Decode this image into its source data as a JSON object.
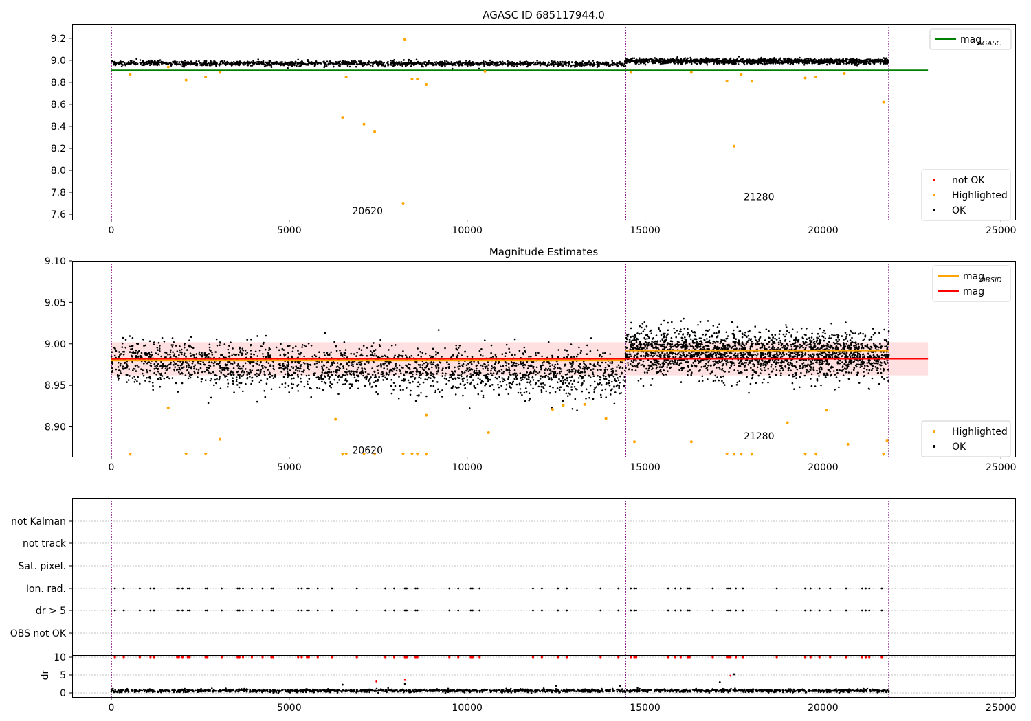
{
  "chart_data": [
    {
      "type": "scatter",
      "title": "AGASC ID 685117944.0",
      "xlim": [
        -1100,
        25400
      ],
      "ylim": [
        7.55,
        9.33
      ],
      "xticks": [
        0,
        5000,
        10000,
        15000,
        20000,
        25000
      ],
      "xtick_labels": [
        "0",
        "5000",
        "10000",
        "15000",
        "20000",
        "25000"
      ],
      "yticks": [
        7.6,
        7.8,
        8.0,
        8.2,
        8.4,
        8.6,
        8.8,
        9.0,
        9.2
      ],
      "ytick_labels": [
        "7.6",
        "7.8",
        "8.0",
        "8.2",
        "8.4",
        "8.6",
        "8.8",
        "9.0",
        "9.2"
      ],
      "obsid_boundaries": [
        0,
        14450,
        21850
      ],
      "obsid_labels": [
        {
          "text": "20620",
          "x": 7200,
          "y": 7.63
        },
        {
          "text": "21280",
          "x": 18200,
          "y": 7.76
        }
      ],
      "series": [
        {
          "name": "mag_AGASC",
          "kind": "hline",
          "y": 8.91,
          "x_range": [
            0,
            22950
          ],
          "color": "#008000"
        },
        {
          "name": "OK",
          "kind": "band",
          "segments": [
            {
              "x": [
                0,
                14450
              ],
              "y_center_start": 8.975,
              "y_center_end": 8.968,
              "half_width": 0.025
            },
            {
              "x": [
                14450,
                21850
              ],
              "y_center_start": 8.993,
              "y_center_end": 8.99,
              "half_width": 0.025
            }
          ],
          "color": "#000000"
        },
        {
          "name": "Highlighted",
          "kind": "points",
          "x": [
            530,
            1600,
            2100,
            2650,
            3050,
            6500,
            6600,
            7100,
            7400,
            8200,
            8250,
            8450,
            8600,
            8850,
            10500,
            14600,
            16300,
            17300,
            17500,
            17700,
            18000,
            19500,
            19800,
            20600,
            21700
          ],
          "y": [
            8.87,
            8.94,
            8.82,
            8.85,
            8.89,
            8.48,
            8.85,
            8.42,
            8.35,
            7.7,
            9.19,
            8.83,
            8.83,
            8.78,
            8.9,
            8.89,
            8.89,
            8.81,
            8.22,
            8.87,
            8.81,
            8.84,
            8.85,
            8.88,
            8.62
          ],
          "color": "#ffa500"
        },
        {
          "name": "not OK",
          "kind": "points",
          "x": [],
          "y": [],
          "color": "#ff0000"
        }
      ],
      "legends": [
        {
          "position": "top-right",
          "entries": [
            {
              "label": "mag",
              "sub": "AGASC",
              "kind": "line",
              "color": "#008000"
            }
          ]
        },
        {
          "position": "bottom-right",
          "entries": [
            {
              "label": "not OK",
              "kind": "dot",
              "color": "#ff0000"
            },
            {
              "label": "Highlighted",
              "kind": "dot",
              "color": "#ffa500"
            },
            {
              "label": "OK",
              "kind": "dot",
              "color": "#000000"
            }
          ]
        }
      ]
    },
    {
      "type": "scatter",
      "title": "Magnitude Estimates",
      "xlim": [
        -1100,
        25400
      ],
      "ylim": [
        8.864,
        9.1
      ],
      "xticks": [
        0,
        5000,
        10000,
        15000,
        20000,
        25000
      ],
      "xtick_labels": [
        "0",
        "5000",
        "10000",
        "15000",
        "20000",
        "25000"
      ],
      "yticks": [
        8.9,
        8.95,
        9.0,
        9.05,
        9.1
      ],
      "ytick_labels": [
        "8.90",
        "8.95",
        "9.00",
        "9.05",
        "9.10"
      ],
      "obsid_boundaries": [
        0,
        14450,
        21850
      ],
      "obsid_labels": [
        {
          "text": "20620",
          "x": 7200,
          "y": 8.872
        },
        {
          "text": "21280",
          "x": 18200,
          "y": 8.889
        }
      ],
      "series": [
        {
          "name": "mag",
          "kind": "hline",
          "y": 8.982,
          "x_range": [
            0,
            22950
          ],
          "band": [
            8.962,
            9.002
          ],
          "color": "#ff0000"
        },
        {
          "name": "mag_OBSID",
          "kind": "segments",
          "segments": [
            {
              "x": [
                0,
                14450
              ],
              "y": 8.98
            },
            {
              "x": [
                14450,
                21850
              ],
              "y": 8.992
            }
          ],
          "color": "#ffa500"
        },
        {
          "name": "OK",
          "kind": "band",
          "segments": [
            {
              "x": [
                0,
                14450
              ],
              "y_center_start": 8.978,
              "y_center_end": 8.962,
              "half_width": 0.03
            },
            {
              "x": [
                14450,
                21850
              ],
              "y_center_start": 8.992,
              "y_center_end": 8.985,
              "half_width": 0.03
            }
          ],
          "color": "#000000"
        },
        {
          "name": "Highlighted",
          "kind": "points",
          "x": [
            1600,
            3050,
            6300,
            8850,
            10600,
            12400,
            12700,
            13300,
            13900,
            14700,
            16300,
            19000,
            20100,
            20700,
            21800
          ],
          "y": [
            8.923,
            8.885,
            8.909,
            8.914,
            8.893,
            8.921,
            8.926,
            8.927,
            8.91,
            8.882,
            8.882,
            8.905,
            8.92,
            8.879,
            8.883
          ],
          "color": "#ffa500"
        },
        {
          "name": "Highlighted (below range)",
          "kind": "markers",
          "x": [
            530,
            2100,
            2650,
            6500,
            6600,
            7100,
            7400,
            8200,
            8450,
            8600,
            8850,
            17300,
            17500,
            17700,
            18000,
            19500,
            19800,
            21700
          ],
          "color": "#ffa500"
        }
      ],
      "legends": [
        {
          "position": "top-right",
          "entries": [
            {
              "label": "mag",
              "sub": "OBSID",
              "kind": "line",
              "color": "#ffa500"
            },
            {
              "label": "mag",
              "kind": "line",
              "color": "#ff0000"
            }
          ]
        },
        {
          "position": "bottom-right",
          "entries": [
            {
              "label": "Highlighted",
              "kind": "dot",
              "color": "#ffa500"
            },
            {
              "label": "OK",
              "kind": "dot",
              "color": "#000000"
            }
          ]
        }
      ]
    },
    {
      "type": "scatter",
      "title": "",
      "xlim": [
        -1100,
        25400
      ],
      "categories": [
        "not Kalman",
        "not track",
        "Sat. pixel.",
        "Ion. rad.",
        "dr > 5",
        "OBS not OK"
      ],
      "obsid_boundaries": [
        0,
        14450,
        21850
      ],
      "flag_events_x": [
        100,
        350,
        800,
        1100,
        1200,
        1850,
        1900,
        2000,
        2150,
        2200,
        2650,
        2700,
        3100,
        3550,
        3600,
        3700,
        3950,
        4250,
        4500,
        4550,
        5250,
        5350,
        5500,
        5550,
        5800,
        6200,
        6900,
        7700,
        7950,
        8250,
        8300,
        8550,
        8600,
        9500,
        9750,
        10100,
        10150,
        10350,
        11850,
        12100,
        12550,
        12800,
        13750,
        14250,
        14600,
        14700,
        14750,
        15650,
        15850,
        16000,
        16200,
        16250,
        16900,
        17300,
        17350,
        17400,
        17550,
        17750,
        18700,
        19500,
        19650,
        19900,
        20200,
        20650,
        21100,
        21200,
        21300,
        21650
      ],
      "flag_rows": {
        "Ion. rad.": "flag_events_x",
        "dr > 5": "flag_events_x"
      }
    },
    {
      "type": "scatter",
      "title": "",
      "ylabel": "dr",
      "xlim": [
        -1100,
        25400
      ],
      "ylim": [
        -0.3,
        10.3
      ],
      "xticks": [
        0,
        5000,
        10000,
        15000,
        20000,
        25000
      ],
      "xtick_labels": [
        "0",
        "5000",
        "10000",
        "15000",
        "20000",
        "25000"
      ],
      "yticks": [
        0,
        5,
        10
      ],
      "ytick_labels": [
        "0",
        "5",
        "10"
      ],
      "obsid_boundaries": [
        0,
        14450,
        21850
      ],
      "series": [
        {
          "name": "OK",
          "kind": "band",
          "segments": [
            {
              "x": [
                0,
                21850
              ],
              "y_center_start": 0.6,
              "y_center_end": 0.6,
              "half_width": 0.45
            }
          ],
          "color": "#000000"
        },
        {
          "name": "dr outliers",
          "kind": "points",
          "x": [
            6500,
            8250,
            12500,
            14300,
            17100,
            17500
          ],
          "y": [
            2.3,
            2.5,
            2.0,
            2.0,
            3.0,
            5.2
          ],
          "color": "#000000"
        },
        {
          "name": "dr > 10",
          "kind": "points",
          "x_ref": "flag_events_x",
          "y": 10,
          "extra": [
            {
              "x": 7450,
              "y": 3.2
            },
            {
              "x": 8250,
              "y": 3.6
            },
            {
              "x": 17400,
              "y": 4.8
            }
          ],
          "color": "#ff0000"
        }
      ]
    }
  ]
}
